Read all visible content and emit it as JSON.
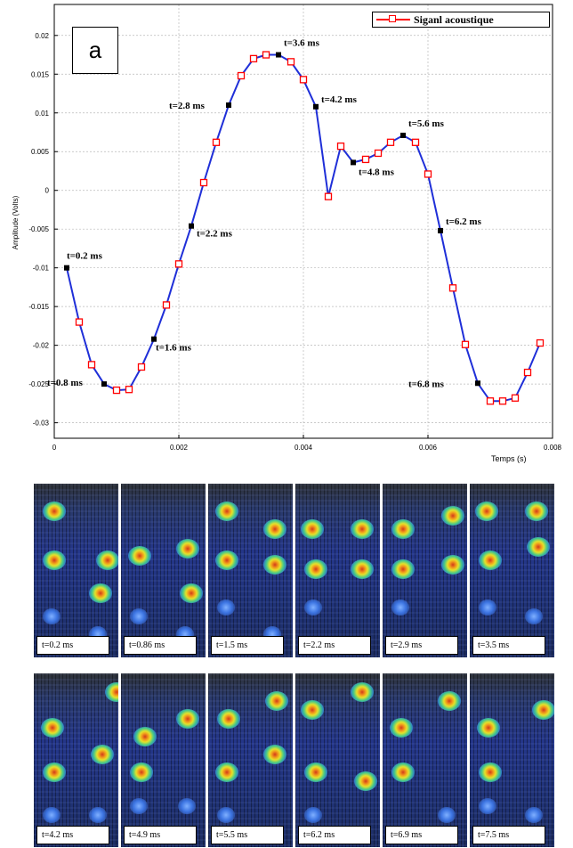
{
  "chart_data": {
    "type": "line",
    "panel_label": "a",
    "xlabel": "Temps (s)",
    "ylabel": "Amplitude (Volts)",
    "xlim": [
      0,
      0.008
    ],
    "ylim": [
      -0.032,
      0.024
    ],
    "x_ticks": [
      "0",
      "0.002",
      "0.004",
      "0.006",
      "0.008"
    ],
    "y_ticks": [
      "0.02",
      "0.015",
      "0.01",
      "0.005",
      "0",
      "-0.005",
      "-0.01",
      "-0.015",
      "-0.02",
      "-0.025",
      "-0.03"
    ],
    "grid": true,
    "legend_position": "top-right",
    "series": [
      {
        "name": "Siganl acoustique",
        "color": "#1f2fd8",
        "marker_color": "#ff0000",
        "x": [
          0.0002,
          0.0004,
          0.0006,
          0.0008,
          0.001,
          0.0012,
          0.0014,
          0.0016,
          0.0018,
          0.002,
          0.0022,
          0.0024,
          0.0026,
          0.0028,
          0.003,
          0.0032,
          0.0034,
          0.0036,
          0.0038,
          0.004,
          0.0042,
          0.0044,
          0.0046,
          0.0048,
          0.005,
          0.0052,
          0.0054,
          0.0056,
          0.0058,
          0.006,
          0.0062,
          0.0064,
          0.0066,
          0.0068,
          0.007,
          0.0072,
          0.0074,
          0.0076,
          0.0078
        ],
        "y": [
          -0.01,
          -0.017,
          -0.0225,
          -0.025,
          -0.0258,
          -0.0257,
          -0.0228,
          -0.0192,
          -0.0148,
          -0.0095,
          -0.0046,
          0.001,
          0.0062,
          0.011,
          0.0148,
          0.017,
          0.0175,
          0.0175,
          0.0166,
          0.0143,
          0.0108,
          -0.0008,
          0.0057,
          0.0036,
          0.004,
          0.0048,
          0.0062,
          0.0071,
          0.0062,
          0.0021,
          -0.0052,
          -0.0126,
          -0.0199,
          -0.0249,
          -0.0272,
          -0.0272,
          -0.0268,
          -0.0235,
          -0.0197
        ]
      }
    ],
    "annotations": [
      {
        "text": "t=0.2 ms",
        "x": 0.0002,
        "y": -0.01
      },
      {
        "text": "t=0.8 ms",
        "x": 0.0008,
        "y": -0.025
      },
      {
        "text": "t=1.6 ms",
        "x": 0.0016,
        "y": -0.0192
      },
      {
        "text": "t=2.2 ms",
        "x": 0.0022,
        "y": -0.0046
      },
      {
        "text": "t=2.8 ms",
        "x": 0.0028,
        "y": 0.011
      },
      {
        "text": "t=3.6 ms",
        "x": 0.0036,
        "y": 0.0175
      },
      {
        "text": "t=4.2 ms",
        "x": 0.0042,
        "y": 0.0108
      },
      {
        "text": "t=4.8 ms",
        "x": 0.0048,
        "y": 0.0036
      },
      {
        "text": "t=5.6 ms",
        "x": 0.0056,
        "y": 0.0071
      },
      {
        "text": "t=6.2 ms",
        "x": 0.0062,
        "y": -0.0052
      },
      {
        "text": "t=6.8 ms",
        "x": 0.0068,
        "y": -0.0249
      }
    ]
  },
  "frames": {
    "row1": [
      {
        "label": "t=0.2 ms"
      },
      {
        "label": "t=0.86 ms"
      },
      {
        "label": "t=1.5 ms"
      },
      {
        "label": "t=2.2 ms"
      },
      {
        "label": "t=2.9 ms"
      },
      {
        "label": "t=3.5 ms"
      }
    ],
    "row2": [
      {
        "label": "t=4.2 ms"
      },
      {
        "label": "t=4.9 ms"
      },
      {
        "label": "t=5.5 ms"
      },
      {
        "label": "t=6.2 ms"
      },
      {
        "label": "t=6.9 ms"
      },
      {
        "label": "t=7.5 ms"
      }
    ]
  }
}
